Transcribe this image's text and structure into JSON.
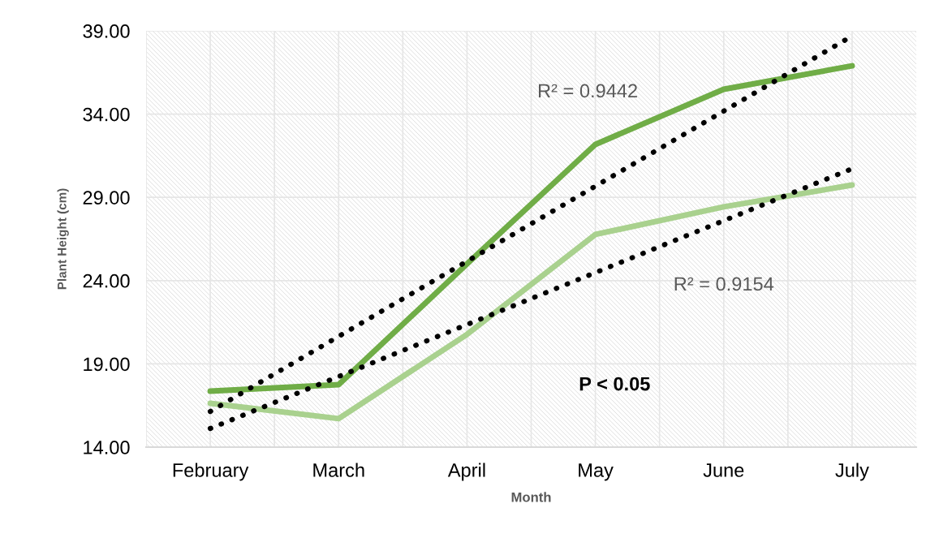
{
  "chart_data": {
    "type": "line",
    "xlabel": "Month",
    "ylabel": "Plant Height (cm)",
    "categories": [
      "February",
      "March",
      "April",
      "May",
      "June",
      "July"
    ],
    "series": [
      {
        "color": "#70ad47",
        "values": [
          17.36,
          17.75,
          25.0,
          32.18,
          35.49,
          36.9
        ]
      },
      {
        "color": "#a9d18e",
        "values": [
          16.63,
          15.71,
          20.77,
          26.77,
          28.43,
          29.74
        ]
      },
      {
        "color": "#000000",
        "line_style": "dotted",
        "values": [
          16.14,
          20.65,
          25.16,
          29.67,
          34.18,
          38.69
        ]
      },
      {
        "color": "#000000",
        "line_style": "dotted",
        "values": [
          15.12,
          18.24,
          21.36,
          24.48,
          27.6,
          30.72
        ]
      }
    ],
    "ylim": [
      14,
      39
    ],
    "yticks": [
      {
        "value": 14,
        "label": "14.00"
      },
      {
        "value": 19,
        "label": "19.00"
      },
      {
        "value": 24,
        "label": "24.00"
      },
      {
        "value": 29,
        "label": "29.00"
      },
      {
        "value": 34,
        "label": "34.00"
      },
      {
        "value": 39,
        "label": "39.00"
      }
    ],
    "grid": true,
    "marker": "none",
    "line_style": "solid",
    "legend": false,
    "annotations": [
      "R² = 0.9442",
      "R² = 0.9154",
      "P < 0.05"
    ]
  }
}
